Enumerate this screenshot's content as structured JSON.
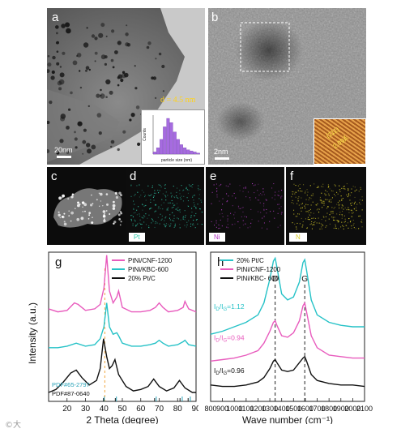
{
  "figure": {
    "panels": {
      "a": {
        "label": "a",
        "scale_bar": "20nm",
        "size_annotation": "d = 4.5 nm",
        "histogram": {
          "xlabel": "particle size (nm)",
          "ylabel": "Counts",
          "values": [
            2,
            6,
            14,
            26,
            34,
            30,
            21,
            14,
            9,
            6,
            4,
            3,
            2,
            1
          ]
        }
      },
      "b": {
        "label": "b",
        "scale_bar": "2nm",
        "lattice_plane": "(111)",
        "d_spacing": "2.09Å"
      },
      "c": {
        "label": "c"
      },
      "d": {
        "label": "d",
        "element": "Pt"
      },
      "e": {
        "label": "e",
        "element": "Ni"
      },
      "f": {
        "label": "f",
        "element": "N"
      },
      "g": {
        "label": "g"
      },
      "h": {
        "label": "h"
      }
    },
    "colors": {
      "pink": "#e85bbd",
      "teal": "#26c2c7",
      "black": "#111111",
      "pt_ref": "#2aa3b8",
      "n_map": "#d8cc2a",
      "pt_map": "#2fc8a8",
      "ni_map": "#b23cc4",
      "hist": "#a66be0"
    }
  },
  "chart_data": [
    {
      "type": "line",
      "panel": "g",
      "xlabel": "2 Theta (degree)",
      "ylabel": "Intensity (a.u.)",
      "xlim": [
        10,
        90
      ],
      "xticks": [
        20,
        30,
        40,
        50,
        60,
        70,
        80,
        90
      ],
      "series": [
        {
          "name": "PtNi/CNF-1200",
          "color": "#e85bbd",
          "x": [
            10,
            15,
            20,
            24,
            26,
            30,
            35,
            38,
            40,
            41.5,
            43,
            45,
            47,
            48,
            50,
            55,
            60,
            65,
            68,
            70,
            72,
            75,
            80,
            83,
            84,
            86,
            90
          ],
          "y": [
            0.62,
            0.6,
            0.61,
            0.66,
            0.65,
            0.61,
            0.62,
            0.65,
            0.76,
            0.98,
            0.74,
            0.66,
            0.7,
            0.74,
            0.63,
            0.6,
            0.6,
            0.61,
            0.63,
            0.66,
            0.63,
            0.6,
            0.61,
            0.63,
            0.67,
            0.62,
            0.6
          ]
        },
        {
          "name": "PtNi/KBC-600",
          "color": "#26c2c7",
          "x": [
            10,
            15,
            20,
            25,
            30,
            35,
            38,
            40,
            41.5,
            43,
            45,
            47,
            48,
            50,
            55,
            60,
            65,
            68,
            70,
            72,
            75,
            80,
            83,
            84,
            86,
            90
          ],
          "y": [
            0.36,
            0.36,
            0.37,
            0.39,
            0.37,
            0.38,
            0.42,
            0.5,
            0.66,
            0.5,
            0.45,
            0.46,
            0.44,
            0.39,
            0.37,
            0.37,
            0.38,
            0.39,
            0.41,
            0.39,
            0.37,
            0.38,
            0.4,
            0.41,
            0.38,
            0.37
          ]
        },
        {
          "name": "20% Pt/C",
          "color": "#111111",
          "x": [
            10,
            14,
            18,
            22,
            25,
            28,
            32,
            36,
            38,
            39.8,
            41.5,
            43,
            44.5,
            46,
            48,
            52,
            56,
            60,
            64,
            67,
            70,
            74,
            78,
            81,
            84,
            88,
            90
          ],
          "y": [
            0.06,
            0.08,
            0.13,
            0.19,
            0.21,
            0.16,
            0.11,
            0.14,
            0.22,
            0.42,
            0.3,
            0.22,
            0.24,
            0.28,
            0.18,
            0.1,
            0.07,
            0.08,
            0.1,
            0.15,
            0.1,
            0.07,
            0.09,
            0.14,
            0.09,
            0.06,
            0.06
          ]
        }
      ],
      "references": [
        {
          "name": "PDF#65-2797",
          "color": "#2aa3b8",
          "x": [
            40.2,
            46.8,
            68.4,
            82.5,
            86.9
          ]
        },
        {
          "name": "PDF#87-0640",
          "color": "#111111",
          "x": [
            39.8,
            46.2,
            67.5,
            81.3,
            85.7
          ]
        }
      ],
      "dashed_line_x": 40.5
    },
    {
      "type": "line",
      "panel": "h",
      "xlabel": "Wave number (cm⁻¹)",
      "xlim": [
        800,
        2100
      ],
      "xticks": [
        800,
        900,
        1000,
        1100,
        1200,
        1300,
        1400,
        1500,
        1600,
        1700,
        1800,
        1900,
        2000,
        2100
      ],
      "peaks": {
        "D": 1345,
        "G": 1595
      },
      "series": [
        {
          "name": "20% Pt/C",
          "color": "#26c2c7",
          "ratio_label": "I_D/I_G=1.12",
          "x": [
            800,
            900,
            1000,
            1100,
            1200,
            1250,
            1300,
            1330,
            1345,
            1360,
            1400,
            1450,
            1500,
            1550,
            1580,
            1595,
            1610,
            1650,
            1700,
            1800,
            1900,
            2000,
            2100
          ],
          "y": [
            0.45,
            0.47,
            0.5,
            0.53,
            0.58,
            0.66,
            0.82,
            0.94,
            0.96,
            0.9,
            0.72,
            0.68,
            0.7,
            0.8,
            0.93,
            0.95,
            0.88,
            0.68,
            0.58,
            0.53,
            0.51,
            0.5,
            0.5
          ]
        },
        {
          "name": "PtNi/CNF-1200",
          "color": "#e85bbd",
          "ratio_label": "I_D/I_G=0.94",
          "x": [
            800,
            900,
            1000,
            1100,
            1200,
            1250,
            1300,
            1330,
            1345,
            1360,
            1400,
            1450,
            1500,
            1550,
            1580,
            1595,
            1610,
            1650,
            1700,
            1800,
            1900,
            2000,
            2100
          ],
          "y": [
            0.27,
            0.28,
            0.29,
            0.31,
            0.34,
            0.39,
            0.47,
            0.53,
            0.54,
            0.51,
            0.44,
            0.43,
            0.46,
            0.54,
            0.64,
            0.66,
            0.6,
            0.44,
            0.36,
            0.31,
            0.3,
            0.29,
            0.29
          ]
        },
        {
          "name": "PtNi/KBC- 600",
          "color": "#111111",
          "ratio_label": "I_D/I_G=0.96",
          "x": [
            800,
            900,
            1000,
            1100,
            1200,
            1250,
            1300,
            1330,
            1345,
            1360,
            1400,
            1450,
            1500,
            1550,
            1580,
            1595,
            1610,
            1650,
            1700,
            1800,
            1900,
            2000,
            2100
          ],
          "y": [
            0.11,
            0.1,
            0.1,
            0.11,
            0.13,
            0.16,
            0.22,
            0.27,
            0.28,
            0.26,
            0.21,
            0.2,
            0.21,
            0.26,
            0.29,
            0.3,
            0.27,
            0.18,
            0.14,
            0.12,
            0.11,
            0.11,
            0.1
          ]
        }
      ]
    }
  ]
}
